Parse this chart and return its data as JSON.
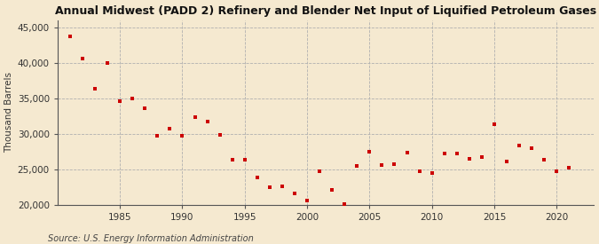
{
  "title": "Annual Midwest (PADD 2) Refinery and Blender Net Input of Liquified Petroleum Gases",
  "ylabel": "Thousand Barrels",
  "source": "Source: U.S. Energy Information Administration",
  "background_color": "#f5e9d0",
  "plot_bg_color": "#f5e9d0",
  "marker_color": "#cc0000",
  "years": [
    1981,
    1982,
    1983,
    1984,
    1985,
    1986,
    1987,
    1988,
    1989,
    1990,
    1991,
    1992,
    1993,
    1994,
    1995,
    1996,
    1997,
    1998,
    1999,
    2000,
    2001,
    2002,
    2003,
    2004,
    2005,
    2006,
    2007,
    2008,
    2009,
    2010,
    2011,
    2012,
    2013,
    2014,
    2015,
    2016,
    2017,
    2018,
    2019,
    2020,
    2021
  ],
  "values": [
    43700,
    40600,
    36300,
    39900,
    34600,
    35000,
    33600,
    29700,
    30700,
    29700,
    32300,
    31700,
    29900,
    26400,
    26400,
    23900,
    22500,
    22600,
    21700,
    20700,
    24700,
    22200,
    20100,
    25500,
    27500,
    25600,
    25700,
    27400,
    24700,
    24500,
    27200,
    27200,
    26500,
    26700,
    31300,
    26100,
    28400,
    28000,
    26400,
    24800,
    25200
  ],
  "ylim": [
    20000,
    46000
  ],
  "yticks": [
    20000,
    25000,
    30000,
    35000,
    40000,
    45000
  ],
  "xlim": [
    1980,
    2023
  ],
  "xticks": [
    1985,
    1990,
    1995,
    2000,
    2005,
    2010,
    2015,
    2020
  ]
}
